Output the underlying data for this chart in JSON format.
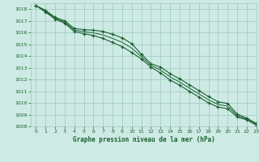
{
  "background_color": "#ceeae4",
  "grid_color": "#9dc8c0",
  "line_color": "#1a6030",
  "marker_color": "#1a6030",
  "xlabel": "Graphe pression niveau de la mer (hPa)",
  "ylim": [
    1008,
    1018.5
  ],
  "xlim": [
    -0.5,
    23
  ],
  "yticks": [
    1008,
    1009,
    1010,
    1011,
    1012,
    1013,
    1014,
    1015,
    1016,
    1017,
    1018
  ],
  "xticks": [
    0,
    1,
    2,
    3,
    4,
    5,
    6,
    7,
    8,
    9,
    10,
    11,
    12,
    13,
    14,
    15,
    16,
    17,
    18,
    19,
    20,
    21,
    22,
    23
  ],
  "series_upper": [
    1018.3,
    1017.9,
    1017.3,
    1017.0,
    1016.35,
    1016.25,
    1016.2,
    1016.1,
    1015.85,
    1015.55,
    1015.05,
    1014.15,
    1013.35,
    1013.05,
    1012.5,
    1012.05,
    1011.55,
    1011.05,
    1010.55,
    1010.1,
    1009.95,
    1009.05,
    1008.7,
    1008.25
  ],
  "series_lower": [
    1018.3,
    1017.75,
    1017.15,
    1016.8,
    1016.1,
    1015.9,
    1015.75,
    1015.5,
    1015.15,
    1014.8,
    1014.3,
    1013.75,
    1013.05,
    1012.55,
    1011.95,
    1011.5,
    1011.0,
    1010.5,
    1010.0,
    1009.65,
    1009.5,
    1008.8,
    1008.55,
    1008.1
  ],
  "series_mid": [
    1018.3,
    1017.82,
    1017.22,
    1016.9,
    1016.22,
    1016.07,
    1015.97,
    1015.8,
    1015.5,
    1015.17,
    1014.67,
    1013.95,
    1013.2,
    1012.8,
    1012.22,
    1011.77,
    1011.27,
    1010.77,
    1010.27,
    1009.87,
    1009.72,
    1008.92,
    1008.62,
    1008.17
  ]
}
